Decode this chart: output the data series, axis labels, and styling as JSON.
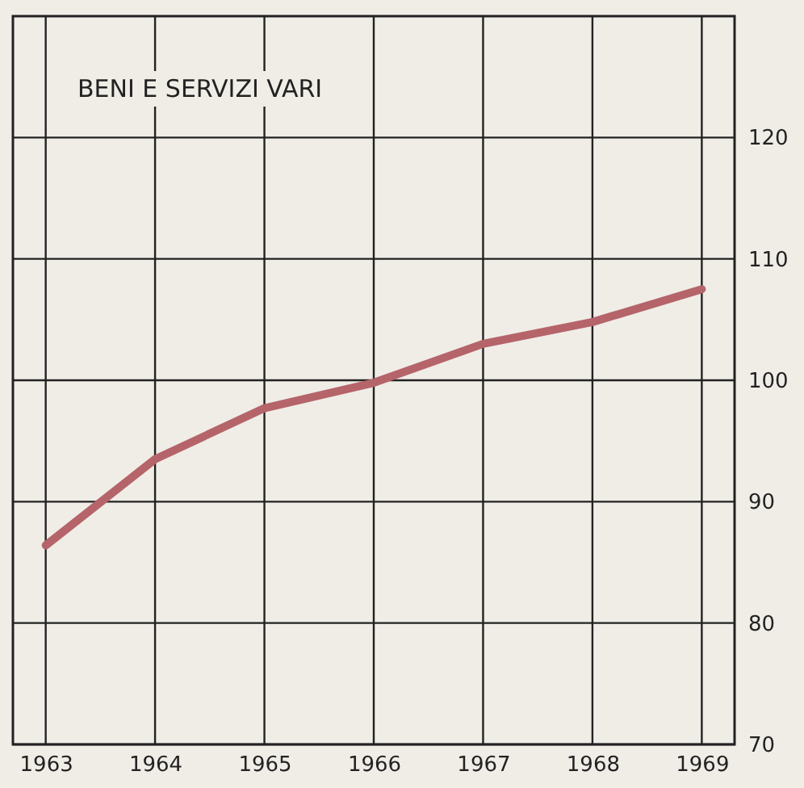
{
  "chart_data": {
    "type": "line",
    "title": "BENI E SERVIZI VARI",
    "x": [
      1963,
      1964,
      1965,
      1966,
      1967,
      1968,
      1969
    ],
    "series": [
      {
        "color": "#b5646a",
        "values": [
          86.4,
          93.5,
          97.7,
          99.8,
          103,
          104.8,
          107.5
        ]
      }
    ],
    "xlim": [
      1962.7,
      1969.3
    ],
    "xticks": [
      1963,
      1964,
      1965,
      1966,
      1967,
      1968,
      1969
    ],
    "ylim": [
      70,
      130
    ],
    "yticks": [
      70,
      80,
      90,
      100,
      110,
      120
    ],
    "grid": true,
    "legend": false,
    "marker": "none",
    "line_style": "solid"
  }
}
